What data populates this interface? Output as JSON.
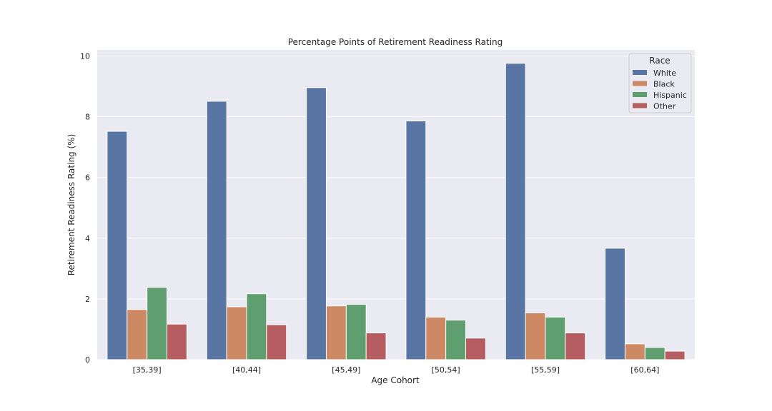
{
  "chart_data": {
    "type": "bar",
    "title": "Percentage Points of Retirement Readiness Rating",
    "xlabel": "Age Cohort",
    "ylabel": "Retirement Readiness Rating (%)",
    "categories": [
      "[35,39]",
      "[40,44]",
      "[45,49]",
      "[50,54]",
      "[55,59]",
      "[60,64]"
    ],
    "ylim": [
      0,
      10.2
    ],
    "yticks": [
      0,
      2,
      4,
      6,
      8,
      10
    ],
    "grid": true,
    "legend": {
      "title": "Race",
      "placement": "top-right"
    },
    "series": [
      {
        "name": "White",
        "color": "#5875a4",
        "values": [
          7.52,
          8.51,
          8.96,
          7.86,
          9.76,
          3.67
        ]
      },
      {
        "name": "Black",
        "color": "#cc8963",
        "values": [
          1.65,
          1.74,
          1.77,
          1.4,
          1.54,
          0.52
        ]
      },
      {
        "name": "Hispanic",
        "color": "#5f9e6e",
        "values": [
          2.38,
          2.17,
          1.82,
          1.3,
          1.4,
          0.4
        ]
      },
      {
        "name": "Other",
        "color": "#b55d60",
        "values": [
          1.17,
          1.15,
          0.88,
          0.71,
          0.88,
          0.28
        ]
      }
    ]
  }
}
